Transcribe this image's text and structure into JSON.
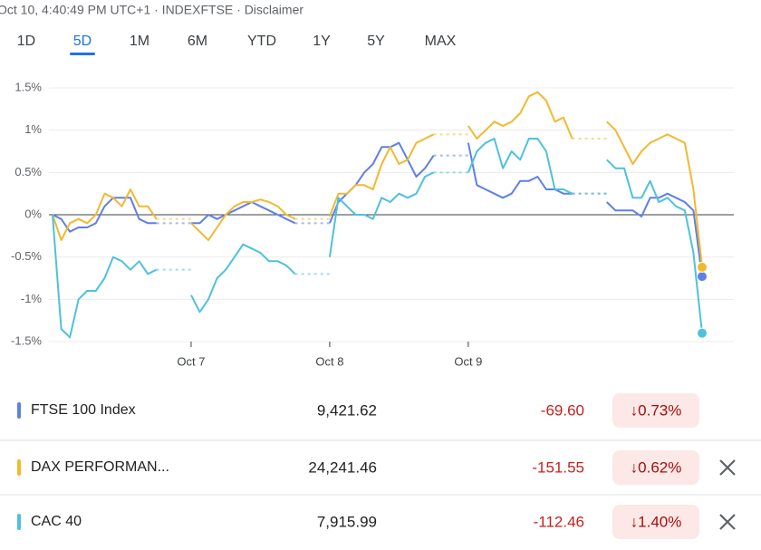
{
  "header": {
    "timestamp": "Oct 10, 4:40:49 PM UTC+1 · INDEXFTSE · Disclaimer"
  },
  "tabs": [
    "1D",
    "5D",
    "1M",
    "6M",
    "YTD",
    "1Y",
    "5Y",
    "MAX"
  ],
  "selected_tab": 1,
  "chart_data": {
    "type": "line",
    "categories": [
      null,
      null,
      null,
      null,
      null,
      null,
      null,
      null,
      null,
      null,
      null,
      null,
      null,
      null,
      null,
      null,
      "Oct 7",
      null,
      null,
      null,
      null,
      null,
      null,
      null,
      null,
      null,
      null,
      null,
      null,
      null,
      null,
      null,
      "Oct 8",
      null,
      null,
      null,
      null,
      null,
      null,
      null,
      null,
      null,
      null,
      null,
      null,
      null,
      null,
      null,
      "Oct 9",
      null,
      null,
      null,
      null,
      null,
      null,
      null,
      null,
      null,
      null,
      null,
      null,
      null,
      null,
      null,
      null,
      null,
      null,
      null,
      null,
      null,
      null,
      null,
      null,
      null,
      null,
      null
    ],
    "ylim": [
      -1.5,
      1.5
    ],
    "yticks": [
      {
        "value": -1.5,
        "label": "-1.5%"
      },
      {
        "value": -1,
        "label": "-1%"
      },
      {
        "value": -0.5,
        "label": "-0.5%"
      },
      {
        "value": 0,
        "label": "0%"
      },
      {
        "value": 0.5,
        "label": "0.5%"
      },
      {
        "value": 1,
        "label": "1%"
      },
      {
        "value": 1.5,
        "label": "1.5%"
      }
    ],
    "grid": true,
    "series": [
      {
        "name": "FTSE 100 Index",
        "color": "#5e7fe8",
        "values": [
          0,
          -0.05,
          -0.2,
          -0.15,
          -0.15,
          -0.1,
          0.1,
          0.2,
          0.2,
          0.2,
          -0.05,
          -0.1,
          -0.1,
          null,
          null,
          null,
          -0.1,
          -0.1,
          0,
          -0.05,
          0,
          0.05,
          0.1,
          0.15,
          0.1,
          0.05,
          0,
          -0.05,
          -0.1,
          null,
          null,
          null,
          -0.1,
          0.15,
          0.25,
          0.35,
          0.5,
          0.6,
          0.8,
          0.8,
          0.85,
          0.65,
          0.45,
          0.55,
          0.7,
          null,
          null,
          null,
          0.85,
          0.35,
          0.3,
          0.25,
          0.2,
          0.25,
          0.4,
          0.4,
          0.45,
          0.3,
          0.3,
          0.25,
          0.25,
          null,
          null,
          null,
          0.15,
          0.05,
          0.05,
          0.05,
          -0.02,
          0.2,
          0.2,
          0.25,
          0.2,
          0.15,
          0.05,
          -0.73
        ]
      },
      {
        "name": "DAX PERFORMAN...",
        "color": "#f2b930",
        "values": [
          0,
          -0.3,
          -0.1,
          -0.05,
          -0.1,
          0,
          0.25,
          0.2,
          0.1,
          0.3,
          0.1,
          0.1,
          -0.05,
          null,
          null,
          null,
          -0.1,
          -0.2,
          -0.3,
          -0.15,
          0,
          0.1,
          0.15,
          0.15,
          0.18,
          0.15,
          0.1,
          0,
          -0.05,
          null,
          null,
          null,
          -0.02,
          0.25,
          0.25,
          0.35,
          0.35,
          0.3,
          0.6,
          0.8,
          0.6,
          0.65,
          0.85,
          0.9,
          0.95,
          null,
          null,
          null,
          1.05,
          0.9,
          1.0,
          1.1,
          1.05,
          1.1,
          1.2,
          1.4,
          1.45,
          1.35,
          1.1,
          1.15,
          0.9,
          null,
          null,
          null,
          1.1,
          1.0,
          0.8,
          0.6,
          0.75,
          0.85,
          0.9,
          0.95,
          0.9,
          0.85,
          0.3,
          -0.62
        ]
      },
      {
        "name": "CAC 40",
        "color": "#4fc1dc",
        "values": [
          0,
          -1.35,
          -1.45,
          -1.0,
          -0.9,
          -0.9,
          -0.75,
          -0.5,
          -0.55,
          -0.65,
          -0.55,
          -0.7,
          -0.65,
          null,
          null,
          null,
          -0.95,
          -1.15,
          -1.0,
          -0.75,
          -0.65,
          -0.5,
          -0.35,
          -0.4,
          -0.45,
          -0.55,
          -0.55,
          -0.6,
          -0.7,
          null,
          null,
          null,
          -0.5,
          0.2,
          0.1,
          0,
          0,
          -0.05,
          0.2,
          0.15,
          0.25,
          0.2,
          0.25,
          0.45,
          0.5,
          null,
          null,
          null,
          0.5,
          0.75,
          0.85,
          0.9,
          0.55,
          0.75,
          0.65,
          0.9,
          0.9,
          0.75,
          0.3,
          0.3,
          0.25,
          null,
          null,
          null,
          0.65,
          0.55,
          0.55,
          0.2,
          0.2,
          0.4,
          0.15,
          0.2,
          0.1,
          0.05,
          -0.45,
          -1.4
        ]
      }
    ]
  },
  "quotes": [
    {
      "price": "9,421.62",
      "change": "-69.60",
      "change_pct": "↓0.73%"
    },
    {
      "price": "24,241.46",
      "change": "-151.55",
      "change_pct": "↓0.62%"
    },
    {
      "price": "7,915.99",
      "change": "-112.46",
      "change_pct": "↓1.40%"
    }
  ]
}
